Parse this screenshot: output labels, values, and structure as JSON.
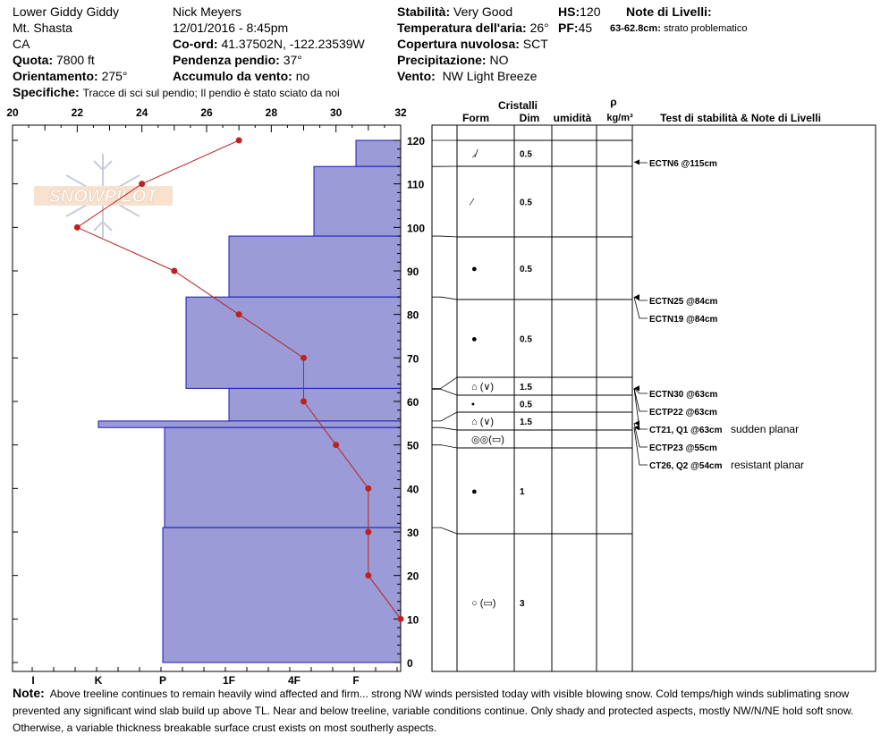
{
  "header": {
    "location": "Lower Giddy Giddy",
    "mountain": "Mt. Shasta",
    "state": "CA",
    "elevation_label": "Quota:",
    "elevation": "7800 ft",
    "aspect_label": "Orientamento:",
    "aspect": "275°",
    "details_label": "Specifiche:",
    "details": "Tracce di sci sul pendio;  Il pendio è stato sciato da noi",
    "observer": "Nick Meyers",
    "datetime": "12/01/2016 - 8:45pm",
    "coord_label": "Co-ord:",
    "coord": "41.37502N, -122.23539W",
    "slope_label": "Pendenza pendio:",
    "slope": "37°",
    "wind_load_label": "Accumulo da vento:",
    "wind_load": "no",
    "stability_label": "Stabilità:",
    "stability": "Very Good",
    "air_temp_label": "Temperatura dell'aria:",
    "air_temp": "26°",
    "cloud_label": "Copertura nuvolosa:",
    "cloud": "SCT",
    "precip_label": "Precipitazione:",
    "precip": "NO",
    "wind_label": "Vento:",
    "wind": "NW Light Breeze",
    "hs_label": "HS:",
    "hs": "120",
    "pf_label": "PF:",
    "pf": "45",
    "layer_notes_label": "Note di Livelli:",
    "layer_note_range": "63-62.8cm:",
    "layer_note_text": "strato problematico"
  },
  "columns": {
    "crystals": "Cristalli",
    "form": "Form",
    "size": "Dim",
    "moisture": "umidità",
    "rho": "ρ",
    "density": "kg/m³",
    "tests": "Test di stabilità & Note di Livelli"
  },
  "logo": "SNOWPILOT",
  "note_label": "Note:",
  "note": "Above treeline continues to remain heavily wind affected and firm... strong NW winds persisted today with visible blowing snow. Cold temps/high winds sublimating snow prevented any significant wind slab build up above TL. Near and below treeline, variable conditions continue. Only shady and protected aspects, mostly NW/N/NE hold soft snow. Otherwise, a variable thickness breakable surface crust exists on most southerly aspects.",
  "chart_data": {
    "type": "line",
    "temperature_axis": {
      "ticks": [
        "20",
        "22",
        "24",
        "26",
        "28",
        "30",
        "32"
      ],
      "range": [
        20,
        32
      ]
    },
    "height_axis": {
      "ticks": [
        "0",
        "10",
        "20",
        "30",
        "40",
        "50",
        "60",
        "70",
        "80",
        "90",
        "100",
        "110",
        "120"
      ],
      "range": [
        0,
        120
      ]
    },
    "hardness_axis": {
      "ticks": [
        "I",
        "K",
        "P",
        "1F",
        "4F",
        "F"
      ]
    },
    "temperature_profile": [
      {
        "h": 120,
        "t": 27
      },
      {
        "h": 110,
        "t": 24
      },
      {
        "h": 100,
        "t": 22
      },
      {
        "h": 90,
        "t": 25
      },
      {
        "h": 80,
        "t": 27
      },
      {
        "h": 70,
        "t": 29
      },
      {
        "h": 60,
        "t": 29
      },
      {
        "h": 50,
        "t": 30
      },
      {
        "h": 40,
        "t": 31
      },
      {
        "h": 30,
        "t": 31
      },
      {
        "h": 20,
        "t": 31
      },
      {
        "h": 10,
        "t": 32
      }
    ],
    "hardness_profile": [
      {
        "bottom": 114,
        "top": 120,
        "hardness": "F"
      },
      {
        "bottom": 98,
        "top": 114,
        "hardness": "4F-"
      },
      {
        "bottom": 84,
        "top": 98,
        "hardness": "1F"
      },
      {
        "bottom": 63,
        "top": 84,
        "hardness": "1F+"
      },
      {
        "bottom": 55.5,
        "top": 63,
        "hardness": "1F"
      },
      {
        "bottom": 54,
        "top": 55.5,
        "hardness": "K+"
      },
      {
        "bottom": 31,
        "top": 54,
        "hardness": "P+"
      },
      {
        "bottom": 0,
        "top": 31,
        "hardness": "P"
      }
    ],
    "layers": [
      {
        "bottom": 114,
        "top": 120,
        "form": "⸝̸",
        "size": "0.5"
      },
      {
        "bottom": 98,
        "top": 114,
        "form": "⁄",
        "size": "0.5"
      },
      {
        "bottom": 84,
        "top": 98,
        "form": "●",
        "size": "0.5"
      },
      {
        "bottom": 63,
        "top": 84,
        "form": "●",
        "size": "0.5"
      },
      {
        "bottom": 62.8,
        "top": 63,
        "form": "⌂ (∨)",
        "size": "1.5"
      },
      {
        "bottom": 55.5,
        "top": 62.8,
        "form": "•",
        "size": "0.5"
      },
      {
        "bottom": 54,
        "top": 55.5,
        "form": "⌂ (∨)",
        "size": "1.5"
      },
      {
        "bottom": 50,
        "top": 54,
        "form": "◎◎(▭)",
        "size": ""
      },
      {
        "bottom": 31,
        "top": 50,
        "form": "●",
        "size": "1"
      },
      {
        "bottom": 0,
        "top": 31,
        "form": "○ (▭)",
        "size": "3"
      }
    ],
    "tests": [
      {
        "label": "ECTN6 @115cm",
        "note": "",
        "depth": 115
      },
      {
        "label": "ECTN25 @84cm",
        "note": "",
        "depth": 84
      },
      {
        "label": "ECTN19 @84cm",
        "note": "",
        "depth": 84
      },
      {
        "label": "ECTN30 @63cm",
        "note": "",
        "depth": 63
      },
      {
        "label": "ECTP22 @63cm",
        "note": "",
        "depth": 63
      },
      {
        "label": "CT21, Q1 @63cm",
        "note": "sudden planar",
        "depth": 63
      },
      {
        "label": "ECTP23 @55cm",
        "note": "",
        "depth": 55
      },
      {
        "label": "CT26, Q2 @54cm",
        "note": "resistant planar",
        "depth": 54
      }
    ]
  }
}
